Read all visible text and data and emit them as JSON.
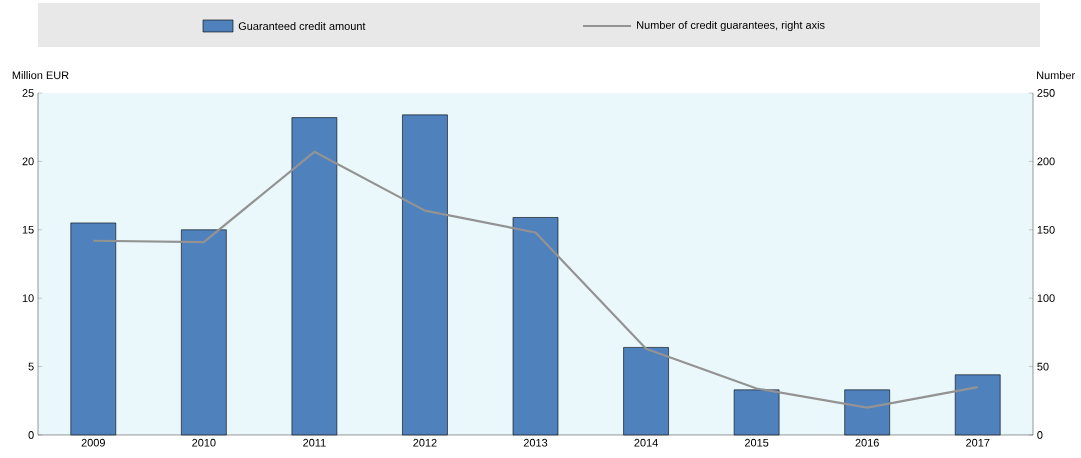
{
  "chart_data": {
    "type": "bar",
    "categories": [
      "2009",
      "2010",
      "2011",
      "2012",
      "2013",
      "2014",
      "2015",
      "2016",
      "2017"
    ],
    "series": [
      {
        "name": "Guaranteed credit amount",
        "color": "#4f81bd",
        "values": [
          15.5,
          15.0,
          23.2,
          23.4,
          15.9,
          6.4,
          3.3,
          3.3,
          4.4
        ]
      },
      {
        "name": "Number of credit guarantees, right axis",
        "type": "line",
        "axis": "y2",
        "color": "#939393",
        "values": [
          142,
          141,
          207,
          164,
          148,
          63,
          34,
          20,
          35
        ]
      }
    ],
    "ylabel": "Million EUR",
    "y2label": "Number",
    "ylim": [
      0,
      25
    ],
    "yticks": [
      0,
      5,
      10,
      15,
      20,
      25
    ],
    "y2lim": [
      0,
      250
    ],
    "y2ticks": [
      0,
      50,
      100,
      150,
      200,
      250
    ],
    "legend": "top",
    "grid": false
  }
}
